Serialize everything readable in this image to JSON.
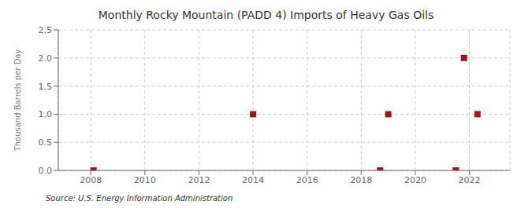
{
  "chart_data": {
    "type": "scatter",
    "title": "Monthly Rocky Mountain (PADD 4) Imports of Heavy Gas Oils",
    "ylabel": "Thousand Barrels per Day",
    "annotations": [
      "Source: U.S. Energy Information Administration"
    ],
    "x": [
      2008.1,
      2014.0,
      2018.7,
      2019.0,
      2021.5,
      2021.8,
      2022.3
    ],
    "values": [
      0.0,
      1.0,
      0.0,
      1.0,
      0.0,
      2.0,
      1.0
    ],
    "color": "#aa1111",
    "marker": "square",
    "xlim": [
      2006.8,
      2023.5
    ],
    "ylim": [
      0.0,
      2.5
    ],
    "xticks": [
      2008,
      2010,
      2012,
      2014,
      2016,
      2018,
      2020,
      2022
    ],
    "yticks": [
      {
        "value": 0,
        "label": "0.0"
      },
      0.5,
      {
        "value": 1,
        "label": "1.0"
      },
      1.5,
      {
        "value": 2,
        "label": "2.0"
      },
      2.5
    ],
    "grid": true
  }
}
